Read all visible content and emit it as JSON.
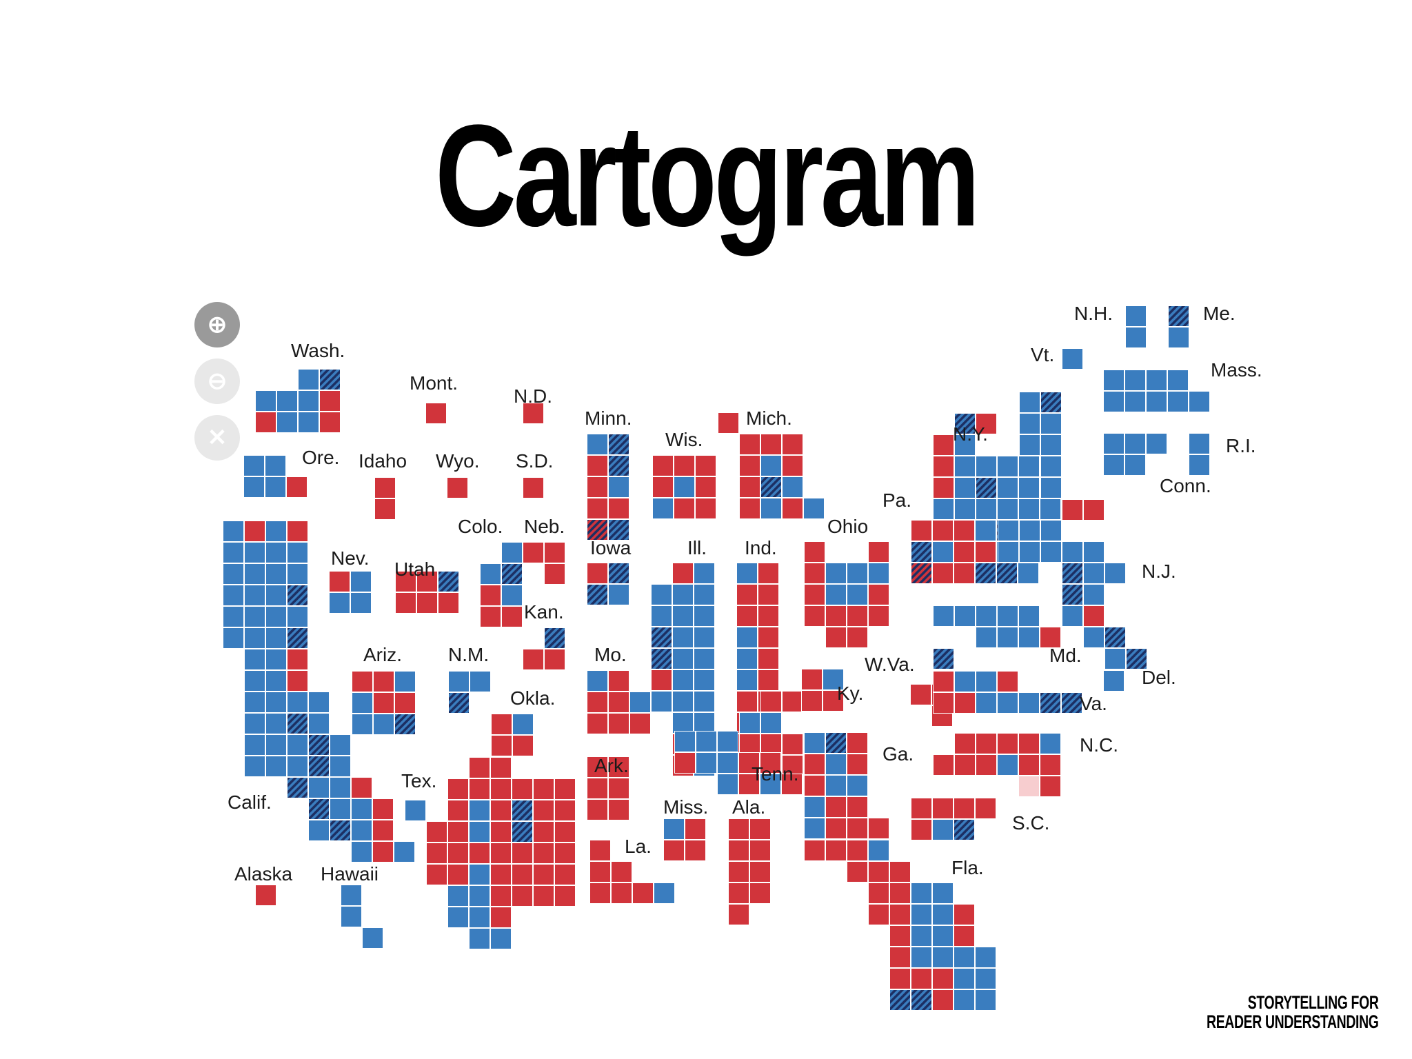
{
  "title": "Cartogram",
  "footer": {
    "line1": "STORYTELLING FOR",
    "line2": "READER UNDERSTANDING"
  },
  "controls": {
    "zoom_in": "⊕",
    "zoom_out": "⊖",
    "reset": "✕"
  },
  "colors": {
    "dem": "#3a7dbf",
    "rep": "#d1343b",
    "flip_rep": "#f7cdcf",
    "flip_dem_hatch": "#1c2f63"
  },
  "labels": [
    {
      "id": "wash",
      "text": "Wash."
    },
    {
      "id": "mont",
      "text": "Mont."
    },
    {
      "id": "nd",
      "text": "N.D."
    },
    {
      "id": "minn",
      "text": "Minn."
    },
    {
      "id": "wis",
      "text": "Wis."
    },
    {
      "id": "mich",
      "text": "Mich."
    },
    {
      "id": "ore",
      "text": "Ore."
    },
    {
      "id": "idaho",
      "text": "Idaho"
    },
    {
      "id": "wyo",
      "text": "Wyo."
    },
    {
      "id": "sd",
      "text": "S.D."
    },
    {
      "id": "colo",
      "text": "Colo."
    },
    {
      "id": "neb",
      "text": "Neb."
    },
    {
      "id": "iowa",
      "text": "Iowa"
    },
    {
      "id": "ill",
      "text": "Ill."
    },
    {
      "id": "ind",
      "text": "Ind."
    },
    {
      "id": "ohio",
      "text": "Ohio"
    },
    {
      "id": "pa",
      "text": "Pa."
    },
    {
      "id": "ny",
      "text": "N.Y."
    },
    {
      "id": "vt",
      "text": "Vt."
    },
    {
      "id": "nh",
      "text": "N.H."
    },
    {
      "id": "me",
      "text": "Me."
    },
    {
      "id": "mass",
      "text": "Mass."
    },
    {
      "id": "ri",
      "text": "R.I."
    },
    {
      "id": "conn",
      "text": "Conn."
    },
    {
      "id": "nj",
      "text": "N.J."
    },
    {
      "id": "nev",
      "text": "Nev."
    },
    {
      "id": "utah",
      "text": "Utah"
    },
    {
      "id": "kan",
      "text": "Kan."
    },
    {
      "id": "mo",
      "text": "Mo."
    },
    {
      "id": "wva",
      "text": "W.Va."
    },
    {
      "id": "md",
      "text": "Md."
    },
    {
      "id": "del",
      "text": "Del."
    },
    {
      "id": "ariz",
      "text": "Ariz."
    },
    {
      "id": "nm",
      "text": "N.M."
    },
    {
      "id": "okla",
      "text": "Okla."
    },
    {
      "id": "ky",
      "text": "Ky."
    },
    {
      "id": "va",
      "text": "Va."
    },
    {
      "id": "ark",
      "text": "Ark."
    },
    {
      "id": "tenn",
      "text": "Tenn."
    },
    {
      "id": "ga",
      "text": "Ga."
    },
    {
      "id": "nc",
      "text": "N.C."
    },
    {
      "id": "tex",
      "text": "Tex."
    },
    {
      "id": "calif",
      "text": "Calif."
    },
    {
      "id": "miss",
      "text": "Miss."
    },
    {
      "id": "ala",
      "text": "Ala."
    },
    {
      "id": "sc",
      "text": "S.C."
    },
    {
      "id": "la",
      "text": "La."
    },
    {
      "id": "fla",
      "text": "Fla."
    },
    {
      "id": "alaska",
      "text": "Alaska"
    },
    {
      "id": "hawaii",
      "text": "Hawaii"
    }
  ]
}
